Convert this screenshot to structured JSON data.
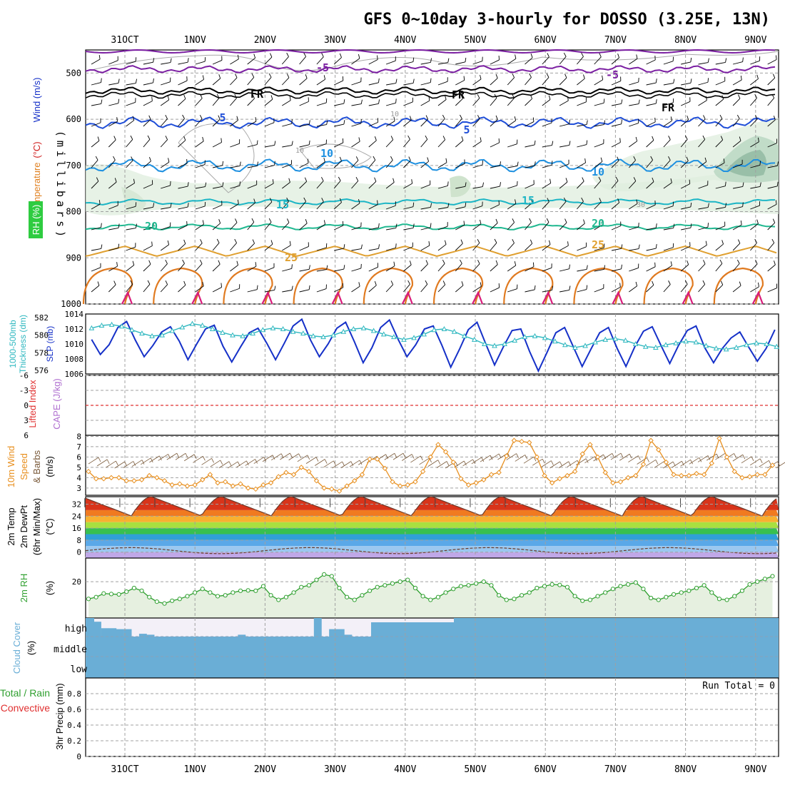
{
  "title": "GFS 0~10day 3-hourly for DOSSO (3.25E, 13N)",
  "dates": [
    "31OCT",
    "1NOV",
    "2NOV",
    "3NOV",
    "4NOV",
    "5NOV",
    "6NOV",
    "7NOV",
    "8NOV",
    "9NOV"
  ],
  "colors": {
    "grid": "#a0a0a0",
    "slp": "#1530c8",
    "thickness": "#30b8c0",
    "wind10m": "#e89020",
    "barb": "#7a5a3a",
    "rh2m": "#30a030",
    "rh2m_fill": "#e6f0e0",
    "cloud": "#6aaed6",
    "cloud_bg": "#f3f0f8",
    "lifted_zero": "#e03030",
    "temp_purple": "#7b1fa2",
    "temp_blue": "#1f4ed8",
    "temp_lightblue": "#1e90e0",
    "temp_cyan": "#1bb5c5",
    "temp_green": "#20b890",
    "temp_gold": "#e0a030",
    "temp_orange": "#e07a20",
    "temp_magenta": "#d81b7a",
    "rh_shade": "#dfeedd"
  },
  "panels": {
    "upper": {
      "y_label_wind": "Wind (m/s)",
      "y_label_temp_paren": "(°C)",
      "y_label_temp": "Temperature",
      "y_label_rh": "RH (%)",
      "y_label_pressure": "(millibars)",
      "y_ticks": [
        "500",
        "600",
        "700",
        "800",
        "900",
        "1000"
      ],
      "contour_labels": [
        "-5",
        "-5",
        "FR",
        "FR",
        "FR",
        "5",
        "5",
        "10",
        "10",
        "15",
        "15",
        "20",
        "20",
        "25",
        "25",
        "10",
        "10",
        "30"
      ]
    },
    "slp": {
      "label_thick": "1000-500mb",
      "label_thick2": "Thickness (dm)",
      "label_slp": "SLP (mb)",
      "thickness_ticks": [
        "582",
        "580",
        "578",
        "576"
      ],
      "slp_ticks": [
        "1014",
        "1012",
        "1010",
        "1008",
        "1006"
      ]
    },
    "cape": {
      "label_li": "Lifted Index",
      "label_cape": "CAPE (J/kg)",
      "ticks": [
        "-6",
        "-3",
        "0",
        "3",
        "6"
      ]
    },
    "wind10m": {
      "label1": "10m Wind",
      "label2": "Speed",
      "label3": "& Barbs",
      "label4": "(m/s)",
      "ticks": [
        "8",
        "7",
        "6",
        "5",
        "4",
        "3"
      ]
    },
    "temp2m": {
      "label1": "2m Temp",
      "label2": "2m DewPt",
      "label3": "(6hr Min/Max)",
      "label4": "(°C)",
      "ticks": [
        "32",
        "24",
        "16",
        "8",
        "0"
      ]
    },
    "rh2m": {
      "label1": "2m RH",
      "label2": "(%)",
      "ticks": [
        "20"
      ]
    },
    "cloud": {
      "label1": "Cloud Cover",
      "label2": "(%)",
      "levels": [
        "high",
        "middle",
        "low"
      ]
    },
    "precip": {
      "label1": "Total / Rain",
      "label2": "Convective",
      "label3": "3hr Precip (mm)",
      "ticks": [
        "0.8",
        "0.6",
        "0.4",
        "0.2",
        "0"
      ],
      "run_total": "Run Total = 0"
    }
  },
  "chart_data": [
    {
      "type": "line",
      "panel": "SLP and 1000-500mb thickness",
      "x_step_hours": 3,
      "series": [
        {
          "name": "SLP (mb)",
          "values": [
            1010.6,
            1008.6,
            1009.9,
            1012.2,
            1013.0,
            1010.5,
            1008.3,
            1009.8,
            1011.6,
            1012.3,
            1010.4,
            1007.9,
            1010.0,
            1012.0,
            1012.5,
            1009.7,
            1007.6,
            1009.6,
            1011.5,
            1012.1,
            1010.1,
            1007.9,
            1010.1,
            1012.4,
            1013.3,
            1010.5,
            1008.3,
            1010.0,
            1012.1,
            1012.9,
            1010.3,
            1007.5,
            1009.5,
            1012.2,
            1013.2,
            1010.6,
            1008.3,
            1009.9,
            1012.0,
            1012.4,
            1009.8,
            1006.9,
            1009.3,
            1011.9,
            1012.9,
            1010.0,
            1007.2,
            1009.6,
            1011.8,
            1012.0,
            1009.0,
            1006.4,
            1008.9,
            1011.5,
            1012.2,
            1009.6,
            1007.0,
            1009.3,
            1011.5,
            1012.2,
            1009.4,
            1007.0,
            1009.6,
            1011.7,
            1012.3,
            1009.8,
            1007.4,
            1009.8,
            1011.8,
            1012.4,
            1009.5,
            1007.5,
            1009.4,
            1010.8,
            1011.6,
            1009.6,
            1007.7,
            1009.4,
            1011.9
          ]
        },
        {
          "name": "1000-500mb Thickness (dm)",
          "values": [
            580.8,
            581.1,
            581.2,
            581.0,
            580.6,
            580.2,
            579.9,
            580.0,
            580.5,
            580.9,
            581.3,
            581.1,
            580.7,
            580.3,
            580.0,
            579.9,
            580.2,
            580.6,
            580.8,
            580.7,
            580.4,
            580.2,
            579.9,
            579.8,
            580.0,
            580.4,
            580.7,
            580.8,
            580.5,
            580.1,
            579.8,
            579.5,
            579.7,
            580.1,
            580.6,
            580.7,
            580.4,
            579.9,
            579.5,
            579.0,
            578.8,
            579.0,
            579.4,
            579.8,
            579.9,
            579.7,
            579.3,
            578.9,
            578.6,
            578.8,
            579.2,
            579.5,
            579.6,
            579.4,
            579.0,
            578.7,
            578.6,
            578.9,
            579.1,
            579.3,
            579.2,
            578.8,
            578.5,
            578.4,
            578.6,
            578.9,
            579.1,
            579.0,
            578.7,
            578.3,
            578.0,
            578.2,
            578.5,
            578.6,
            578.4,
            578.0,
            577.6,
            577.2,
            576.8
          ]
        }
      ]
    },
    {
      "type": "line",
      "panel": "10m Wind Speed",
      "y_unit": "m/s",
      "ylim": [
        2.5,
        8
      ],
      "series": [
        {
          "name": "10m Wind Speed",
          "values": [
            4.6,
            3.9,
            3.9,
            4.0,
            4.0,
            3.7,
            3.7,
            3.8,
            4.2,
            4.0,
            3.7,
            3.3,
            3.4,
            3.2,
            3.3,
            3.8,
            4.3,
            3.5,
            3.6,
            3.2,
            3.4,
            3.0,
            2.9,
            3.3,
            3.5,
            4.1,
            4.5,
            4.3,
            5.0,
            4.6,
            3.7,
            3.0,
            2.9,
            2.7,
            3.2,
            3.7,
            4.3,
            5.8,
            5.8,
            4.9,
            3.6,
            3.2,
            3.3,
            3.6,
            4.6,
            6.0,
            7.2,
            6.5,
            5.5,
            3.9,
            3.3,
            3.5,
            3.8,
            4.3,
            4.5,
            6.1,
            7.6,
            7.5,
            7.4,
            6.0,
            4.2,
            3.5,
            3.9,
            4.2,
            4.6,
            6.3,
            7.2,
            6.0,
            4.5,
            3.5,
            3.6,
            4.0,
            4.2,
            5.3,
            7.6,
            6.7,
            5.5,
            4.3,
            4.2,
            4.2,
            4.4,
            4.3,
            5.4,
            7.8,
            6.0,
            4.6,
            4.0,
            4.1,
            4.3,
            4.3,
            5.2
          ]
        }
      ]
    },
    {
      "type": "area",
      "panel": "2m RH",
      "y_unit": "%",
      "ylim": [
        0,
        30
      ],
      "series": [
        {
          "name": "2m RH",
          "values": [
            10.5,
            11.5,
            13.5,
            13.2,
            13.0,
            14.5,
            16.5,
            15.0,
            11.5,
            9.0,
            8.0,
            9.5,
            10.5,
            12.0,
            14.0,
            16.0,
            14.0,
            12.0,
            12.5,
            14.0,
            15.0,
            15.2,
            15.0,
            17.5,
            12.5,
            10.0,
            11.5,
            14.0,
            17.0,
            18.0,
            21.0,
            24.0,
            23.0,
            16.5,
            11.5,
            10.0,
            12.5,
            15.0,
            17.0,
            18.0,
            19.0,
            20.0,
            21.0,
            16.5,
            12.0,
            10.0,
            11.5,
            14.0,
            16.0,
            17.5,
            18.0,
            19.0,
            20.0,
            18.0,
            12.5,
            10.0,
            10.5,
            12.5,
            14.0,
            16.5,
            17.5,
            18.5,
            18.2,
            17.0,
            12.0,
            9.5,
            10.0,
            12.0,
            14.0,
            16.0,
            17.5,
            18.5,
            19.5,
            16.0,
            11.0,
            10.0,
            11.5,
            13.0,
            14.0,
            15.0,
            16.5,
            18.0,
            14.0,
            10.5,
            10.0,
            12.0,
            15.0,
            18.5,
            20.0,
            21.5,
            23.0
          ]
        }
      ]
    },
    {
      "type": "area",
      "panel": "Cloud Cover (high)",
      "y_unit": "%",
      "series": [
        {
          "name": "high cloud",
          "values": [
            80,
            45,
            45,
            40,
            40,
            0,
            15,
            10,
            0,
            0,
            0,
            0,
            0,
            0,
            0,
            0,
            0,
            0,
            0,
            10,
            0,
            0,
            0,
            0,
            0,
            0,
            0,
            0,
            0,
            100,
            0,
            40,
            40,
            10,
            0,
            0,
            0,
            0,
            0,
            0,
            0,
            0,
            0,
            0,
            0,
            0,
            0,
            0,
            0,
            0,
            0,
            0,
            0,
            0,
            0,
            0,
            0,
            0,
            0,
            0,
            0,
            0,
            0,
            0,
            0,
            0,
            0,
            0,
            0,
            0,
            0,
            0,
            0,
            0,
            0,
            0,
            0,
            0,
            0,
            0,
            0,
            0,
            0,
            0,
            0,
            0,
            0,
            0,
            0,
            0,
            0
          ]
        }
      ]
    },
    {
      "type": "bar",
      "panel": "3hr Precip",
      "y_unit": "mm",
      "ylim": [
        0,
        1.0
      ],
      "series": [
        {
          "name": "Total / Rain",
          "values": []
        }
      ]
    }
  ]
}
